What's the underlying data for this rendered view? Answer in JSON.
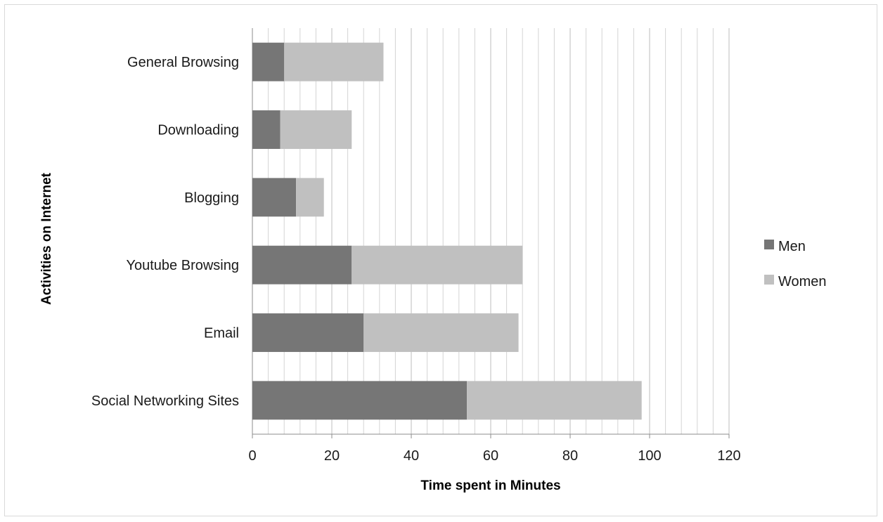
{
  "chart_data": {
    "type": "bar",
    "orientation": "horizontal",
    "stacked": true,
    "title": "",
    "xlabel": "Time spent in Minutes",
    "ylabel": "Activities on Internet",
    "xlim": [
      0,
      120
    ],
    "x_ticks": [
      0,
      20,
      40,
      60,
      80,
      100,
      120
    ],
    "minor_gridlines_every": 4,
    "grid": true,
    "legend_position": "right",
    "categories": [
      "Social Networking Sites",
      "Email",
      "Youtube Browsing",
      "Blogging",
      "Downloading",
      "General Browsing"
    ],
    "series": [
      {
        "name": "Men",
        "color": "#767676",
        "values": [
          54,
          28,
          25,
          11,
          7,
          8
        ]
      },
      {
        "name": "Women",
        "color": "#c0c0c0",
        "values": [
          44,
          39,
          43,
          7,
          18,
          25
        ]
      }
    ]
  }
}
